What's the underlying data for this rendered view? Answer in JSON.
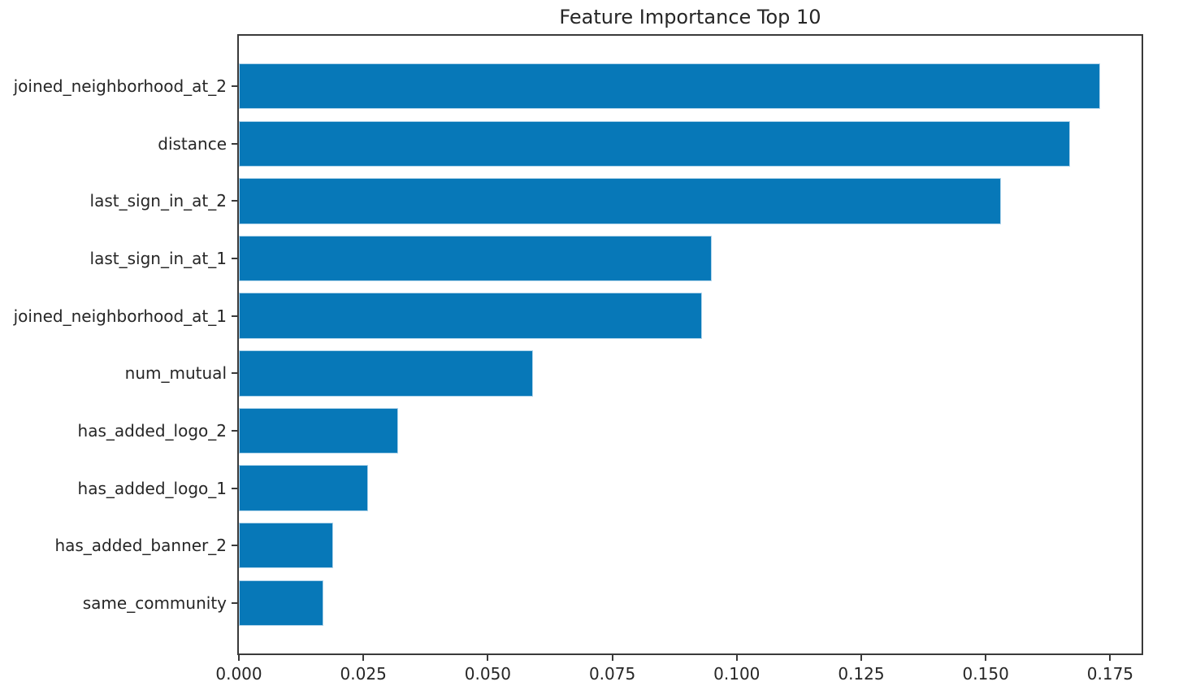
{
  "chart_data": {
    "type": "bar",
    "orientation": "horizontal",
    "title": "Feature Importance Top 10",
    "categories": [
      "joined_neighborhood_at_2",
      "distance",
      "last_sign_in_at_2",
      "last_sign_in_at_1",
      "joined_neighborhood_at_1",
      "num_mutual",
      "has_added_logo_2",
      "has_added_logo_1",
      "has_added_banner_2",
      "same_community"
    ],
    "values": [
      0.173,
      0.167,
      0.153,
      0.095,
      0.093,
      0.059,
      0.032,
      0.026,
      0.019,
      0.017
    ],
    "xlabel": "",
    "ylabel": "",
    "xlim": [
      0,
      0.1813
    ],
    "x_tick_labels": [
      "0.000",
      "0.025",
      "0.050",
      "0.075",
      "0.100",
      "0.125",
      "0.150",
      "0.175"
    ],
    "x_tick_values": [
      0.0,
      0.025,
      0.05,
      0.075,
      0.1,
      0.125,
      0.15,
      0.175
    ],
    "grid": false,
    "legend_position": "none",
    "colors": {
      "bar_fill": "#0778b8",
      "bar_edge": "#aed3ea",
      "spine": "#3a3a3a",
      "text": "#262626",
      "background": "#ffffff"
    }
  }
}
